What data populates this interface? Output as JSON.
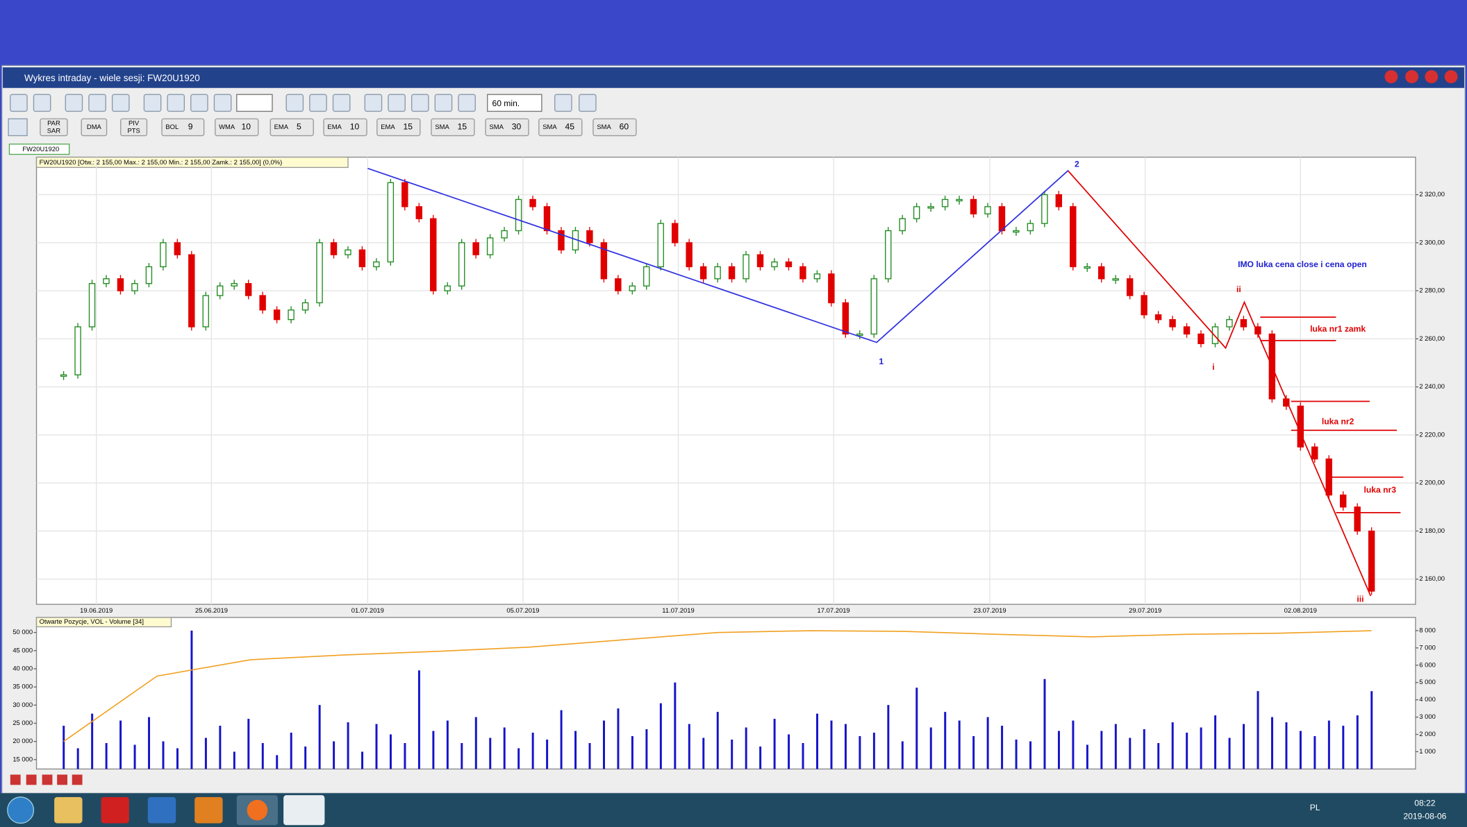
{
  "window": {
    "title": "Wykres intraday -  wiele sesji: FW20U1920"
  },
  "toolbar": {
    "interval": "60 min.",
    "indicators": [
      {
        "lines": [
          "PAR",
          "SAR"
        ]
      },
      {
        "lines": [
          "DMA"
        ]
      },
      {
        "lines": [
          "PIV",
          "PTS"
        ]
      },
      {
        "label": "BOL",
        "period": 9
      },
      {
        "label": "WMA",
        "period": 10
      },
      {
        "label": "EMA",
        "period": 5
      },
      {
        "label": "EMA",
        "period": 10
      },
      {
        "label": "EMA",
        "period": 15
      },
      {
        "label": "SMA",
        "period": 15
      },
      {
        "label": "SMA",
        "period": 30
      },
      {
        "label": "SMA",
        "period": 45
      },
      {
        "label": "SMA",
        "period": 60
      }
    ]
  },
  "tab": "FW20U1920",
  "chart_data": [
    {
      "type": "candlestick",
      "title": "FW20U1920 [Otw.: 2 155,00  Max.: 2 155,00  Min.: 2 155,00  Zamk.: 2 155,00] (0,0%)",
      "categories": [
        "19.06.2019",
        "25.06.2019",
        "01.07.2019",
        "05.07.2019",
        "11.07.2019",
        "17.07.2019",
        "23.07.2019",
        "29.07.2019",
        "02.08.2019"
      ],
      "close": [
        2245,
        2265,
        2283,
        2285,
        2280,
        2283,
        2290,
        2300,
        2295,
        2265,
        2278,
        2282,
        2283,
        2278,
        2272,
        2268,
        2272,
        2275,
        2300,
        2295,
        2297,
        2290,
        2292,
        2325,
        2315,
        2310,
        2280,
        2282,
        2300,
        2295,
        2302,
        2305,
        2318,
        2315,
        2305,
        2297,
        2305,
        2300,
        2285,
        2280,
        2282,
        2290,
        2308,
        2300,
        2290,
        2285,
        2290,
        2285,
        2295,
        2290,
        2292,
        2290,
        2285,
        2287,
        2275,
        2262,
        2262,
        2285,
        2305,
        2310,
        2315,
        2315,
        2318,
        2318,
        2312,
        2315,
        2305,
        2305,
        2308,
        2320,
        2315,
        2290,
        2290,
        2285,
        2285,
        2278,
        2270,
        2268,
        2265,
        2262,
        2258,
        2265,
        2268,
        2265,
        2262,
        2235,
        2232,
        2215,
        2210,
        2195,
        2190,
        2180,
        2155
      ],
      "up_color": "#1f8a1f",
      "down_color": "#e00000",
      "ylim": [
        2149.5,
        2335.6
      ],
      "yticks": [
        {
          "value": 2160,
          "label": "2 160,00"
        },
        {
          "value": 2180,
          "label": "2 180,00"
        },
        {
          "value": 2200,
          "label": "2 200,00"
        },
        {
          "value": 2220,
          "label": "2 220,00"
        },
        {
          "value": 2240,
          "label": "2 240,00"
        },
        {
          "value": 2260,
          "label": "2 260,00"
        },
        {
          "value": 2280,
          "label": "2 280,00"
        },
        {
          "value": 2300,
          "label": "2 300,00"
        },
        {
          "value": 2320,
          "label": "2 320,00"
        }
      ],
      "grid": true,
      "annotations": [
        {
          "text": "1",
          "color": "#2020d0"
        },
        {
          "text": "2",
          "color": "#2020d0"
        },
        {
          "text": "i",
          "color": "#e00000"
        },
        {
          "text": "ii",
          "color": "#e00000"
        },
        {
          "text": "iii",
          "color": "#e00000"
        },
        {
          "text": "IMO luka cena close i cena open",
          "color": "#2020d0"
        },
        {
          "text": "luka nr1 zamk",
          "color": "#e00000"
        },
        {
          "text": "luka nr2",
          "color": "#e00000"
        },
        {
          "text": "luka nr3",
          "color": "#e00000"
        }
      ]
    },
    {
      "type": "bar",
      "title": "Otwarte Pozycje, VOL - Volume [34]",
      "series": [
        {
          "color": "#1414c8",
          "axis": "y2",
          "values": [
            2500,
            1200,
            3200,
            1500,
            2800,
            1400,
            3000,
            1600,
            1200,
            8000,
            1800,
            2500,
            1000,
            2900,
            1500,
            800,
            2100,
            1300,
            3700,
            1600,
            2700,
            1000,
            2600,
            2000,
            1500,
            5700,
            2200,
            2800,
            1500,
            3000,
            1800,
            2400,
            1200,
            2100,
            1700,
            3400,
            2200,
            1500,
            2800,
            3500,
            1900,
            2300,
            3800,
            5000,
            2600,
            1800,
            3300,
            1700,
            2400,
            1300,
            2900,
            2000,
            1500,
            3200,
            2800,
            2600,
            1900,
            2100,
            3700,
            1600,
            4700,
            2400,
            3300,
            2800,
            1900,
            3000,
            2500,
            1700,
            1600,
            5200,
            2200,
            2800,
            1400,
            2200,
            2600,
            1800,
            2300,
            1500,
            2700,
            2100,
            2400,
            3100,
            1800,
            2600,
            4500,
            3000,
            2700,
            2200,
            1900,
            2800,
            2500,
            3100,
            4500
          ]
        },
        {
          "color": "#f0a020",
          "values": [
            20000,
            38000,
            42500,
            43800,
            44800,
            46000,
            48000,
            50000,
            50500,
            50300,
            49500,
            48800,
            49500,
            49800,
            50500
          ]
        }
      ],
      "ylim": [
        12409,
        54145
      ],
      "yticks": [
        {
          "value": 15000,
          "label": "15 000"
        },
        {
          "value": 20000,
          "label": "20 000"
        },
        {
          "value": 25000,
          "label": "25 000"
        },
        {
          "value": 30000,
          "label": "30 000"
        },
        {
          "value": 35000,
          "label": "35 000"
        },
        {
          "value": 40000,
          "label": "40 000"
        },
        {
          "value": 45000,
          "label": "45 000"
        },
        {
          "value": 50000,
          "label": "50 000"
        }
      ],
      "y2lim": [
        0,
        8760
      ],
      "y2ticks": [
        {
          "value": 1000,
          "label": "1 000"
        },
        {
          "value": 2000,
          "label": "2 000"
        },
        {
          "value": 3000,
          "label": "3 000"
        },
        {
          "value": 4000,
          "label": "4 000"
        },
        {
          "value": 5000,
          "label": "5 000"
        },
        {
          "value": 6000,
          "label": "6 000"
        },
        {
          "value": 7000,
          "label": "7 000"
        },
        {
          "value": 8000,
          "label": "8 000"
        }
      ]
    }
  ],
  "taskbar": {
    "language": "PL",
    "time": "08:22",
    "date": "2019-08-06"
  }
}
